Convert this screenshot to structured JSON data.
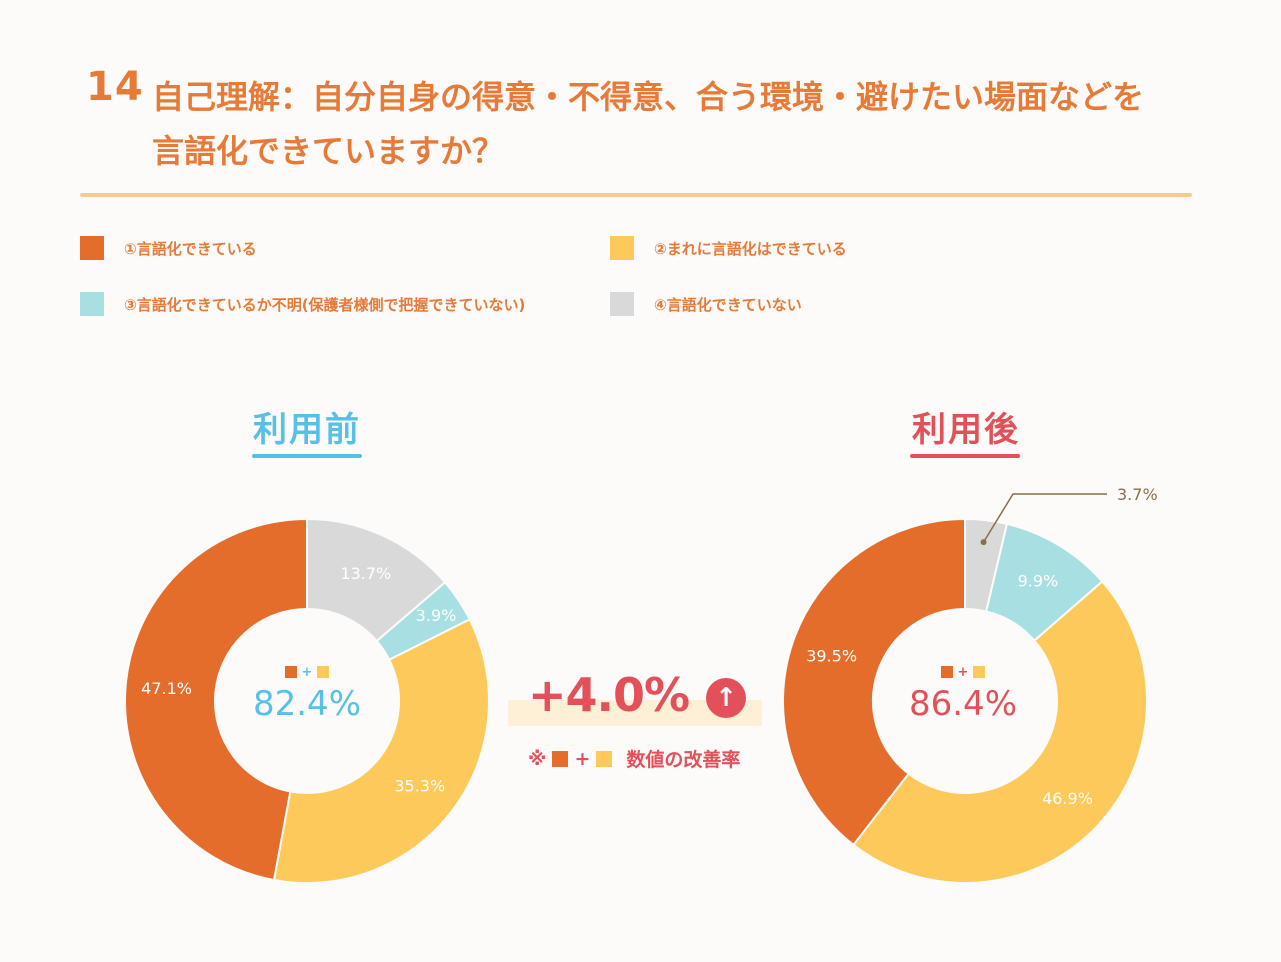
{
  "title": {
    "number": "14",
    "line1": "自己理解：自分自身の得意・不得意、合う環境・避けたい場面などを",
    "line2": "言語化できていますか？"
  },
  "legend": [
    {
      "label": "①言語化できている",
      "color": "#e56d2c"
    },
    {
      "label": "②まれに言語化はできている",
      "color": "#fdc95a"
    },
    {
      "label": "③言語化できているか不明(保護者様側で把握できていない)",
      "color": "#a8dfe3"
    },
    {
      "label": "④言語化できていない",
      "color": "#d9d9d9"
    }
  ],
  "colors": {
    "before_accent": "#57c0e6",
    "after_accent": "#e3505a",
    "title": "#e67a37"
  },
  "chart_data": [
    {
      "type": "pie",
      "title": "利用前",
      "categories": [
        "①言語化できている",
        "②まれに言語化はできている",
        "③言語化できているか不明(保護者様側で把握できていない)",
        "④言語化できていない"
      ],
      "values": [
        47.1,
        35.3,
        3.9,
        13.7
      ],
      "value_labels": [
        "47.1%",
        "35.3%",
        "3.9%",
        "13.7%"
      ],
      "center_label": "82.4%",
      "legend_position": "top"
    },
    {
      "type": "pie",
      "title": "利用後",
      "categories": [
        "①言語化できている",
        "②まれに言語化はできている",
        "③言語化できているか不明(保護者様側で把握できていない)",
        "④言語化できていない"
      ],
      "values": [
        39.5,
        46.9,
        9.9,
        3.7
      ],
      "value_labels": [
        "39.5%",
        "46.9%",
        "9.9%",
        "3.7%"
      ],
      "center_label": "86.4%",
      "legend_position": "top"
    }
  ],
  "improvement": {
    "value": "+4.0%",
    "arrow": "↑",
    "note_prefix": "※",
    "note_text": "数値の改善率",
    "plus": "+"
  }
}
